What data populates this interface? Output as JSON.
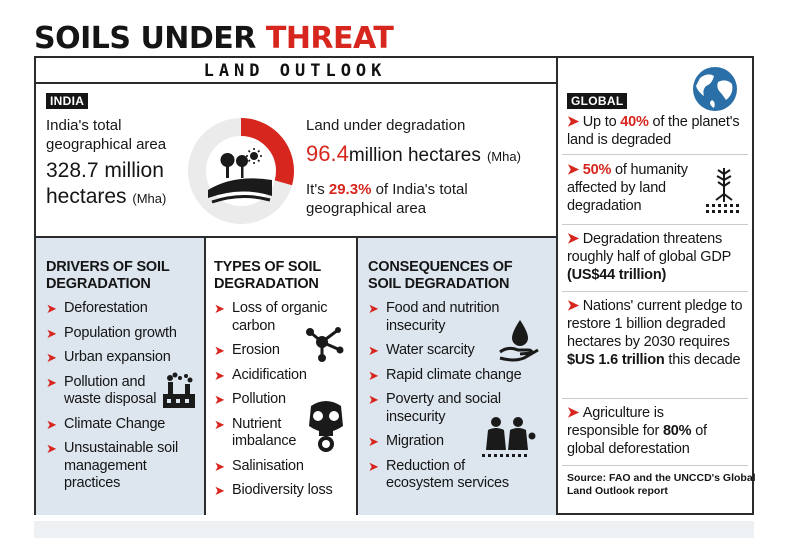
{
  "header": {
    "title_part1": "SOILS UNDER ",
    "title_part2": "THREAT",
    "subtitle": "LAND OUTLOOK"
  },
  "india": {
    "label": "INDIA",
    "area_text_line1": "India's total",
    "area_text_line2": "geographical area",
    "area_value_line1": "328.7 million",
    "area_value_line2": "hectares",
    "area_unit": "(Mha)",
    "degradation_label": "Land under degradation",
    "degradation_value": "96.4",
    "degradation_value_rest": "million hectares",
    "degradation_unit": "(Mha)",
    "pct_prefix": "It's ",
    "pct_value": "29.3%",
    "pct_suffix": " of India's total geographical area",
    "degraded_fraction": 0.293
  },
  "drivers": {
    "heading_line1": "DRIVERS OF SOIL",
    "heading_line2": "DEGRADATION",
    "items": [
      "Deforestation",
      "Population growth",
      "Urban expansion",
      "Pollution and waste disposal",
      "Climate Change",
      "Unsustainable soil management practices"
    ]
  },
  "types": {
    "heading_line1": "TYPES OF SOIL",
    "heading_line2": "DEGRADATION",
    "items": [
      "Loss of organic carbon",
      "Erosion",
      "Acidification",
      "Pollution",
      "Nutrient imbalance",
      "Salinisation",
      "Biodiversity loss"
    ]
  },
  "consequences": {
    "heading_line1": "CONSEQUENCES OF",
    "heading_line2": "SOIL DEGRADATION",
    "items": [
      "Food and nutrition insecurity",
      "Water scarcity",
      "Rapid climate change",
      "Poverty and social insecurity",
      "Migration",
      "Reduction of ecosystem services"
    ]
  },
  "global": {
    "label": "GLOBAL",
    "item1_pre": "Up to ",
    "item1_bold": "40%",
    "item1_post": " of the planet's land is degraded",
    "item2_bold": "50%",
    "item2_post": " of humanity affected by land degradation",
    "item3_pre": "Degradation threatens roughly half of global GDP ",
    "item3_bold": "(US$44 trillion)",
    "item4_pre": "Nations' current pledge to restore 1 billion degraded hectares by 2030 requires ",
    "item4_bold": "$US 1.6 trillion",
    "item4_post": " this decade",
    "item5_pre": "Agriculture is responsible for ",
    "item5_bold": "80%",
    "item5_post": " of global deforestation",
    "source": "Source: FAO and the UNCCD's Global Land Outlook report"
  },
  "colors": {
    "accent": "#d7261e",
    "panel_bg": "#dde6ef",
    "dark": "#151515"
  },
  "icons": [
    "globe-icon",
    "land-icon",
    "factory-icon",
    "molecule-icon",
    "gas-mask-icon",
    "water-hand-icon",
    "migration-icon",
    "plant-soil-icon"
  ]
}
